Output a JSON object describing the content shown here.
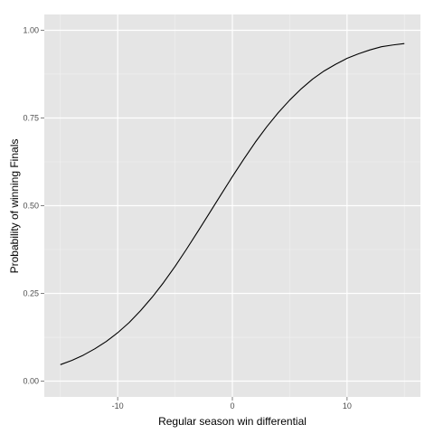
{
  "chart_data": {
    "type": "line",
    "title": "",
    "xlabel": "Regular season win differential",
    "ylabel": "Probability of winning Finals",
    "xlim": [
      -16.4,
      16.4
    ],
    "ylim": [
      -0.045,
      1.045
    ],
    "x_ticks": [
      -10,
      0,
      10
    ],
    "x_tick_labels": [
      "-10",
      "0",
      "10"
    ],
    "y_ticks": [
      0,
      0.25,
      0.5,
      0.75,
      1
    ],
    "y_tick_labels": [
      "0.00",
      "0.25",
      "0.50",
      "0.75",
      "1.00"
    ],
    "grid": true,
    "legend": "none",
    "series": [
      {
        "x": [
          -15,
          -14,
          -13,
          -12,
          -11,
          -10,
          -9,
          -8,
          -7,
          -6,
          -5,
          -4,
          -3,
          -2,
          -1,
          0,
          1,
          2,
          3,
          4,
          5,
          6,
          7,
          8,
          9,
          10,
          11,
          12,
          13,
          14,
          15
        ],
        "y": [
          0.047,
          0.059,
          0.074,
          0.092,
          0.113,
          0.138,
          0.167,
          0.201,
          0.239,
          0.281,
          0.327,
          0.376,
          0.427,
          0.479,
          0.531,
          0.583,
          0.633,
          0.681,
          0.725,
          0.765,
          0.801,
          0.833,
          0.861,
          0.884,
          0.903,
          0.92,
          0.933,
          0.944,
          0.953,
          0.958,
          0.962
        ]
      }
    ]
  },
  "colors": {
    "panel_background": "#e5e5e5",
    "grid_major": "#ffffff",
    "grid_minor": "#f2f2f2",
    "line": "#000000",
    "tick_text": "#4d4d4d"
  }
}
